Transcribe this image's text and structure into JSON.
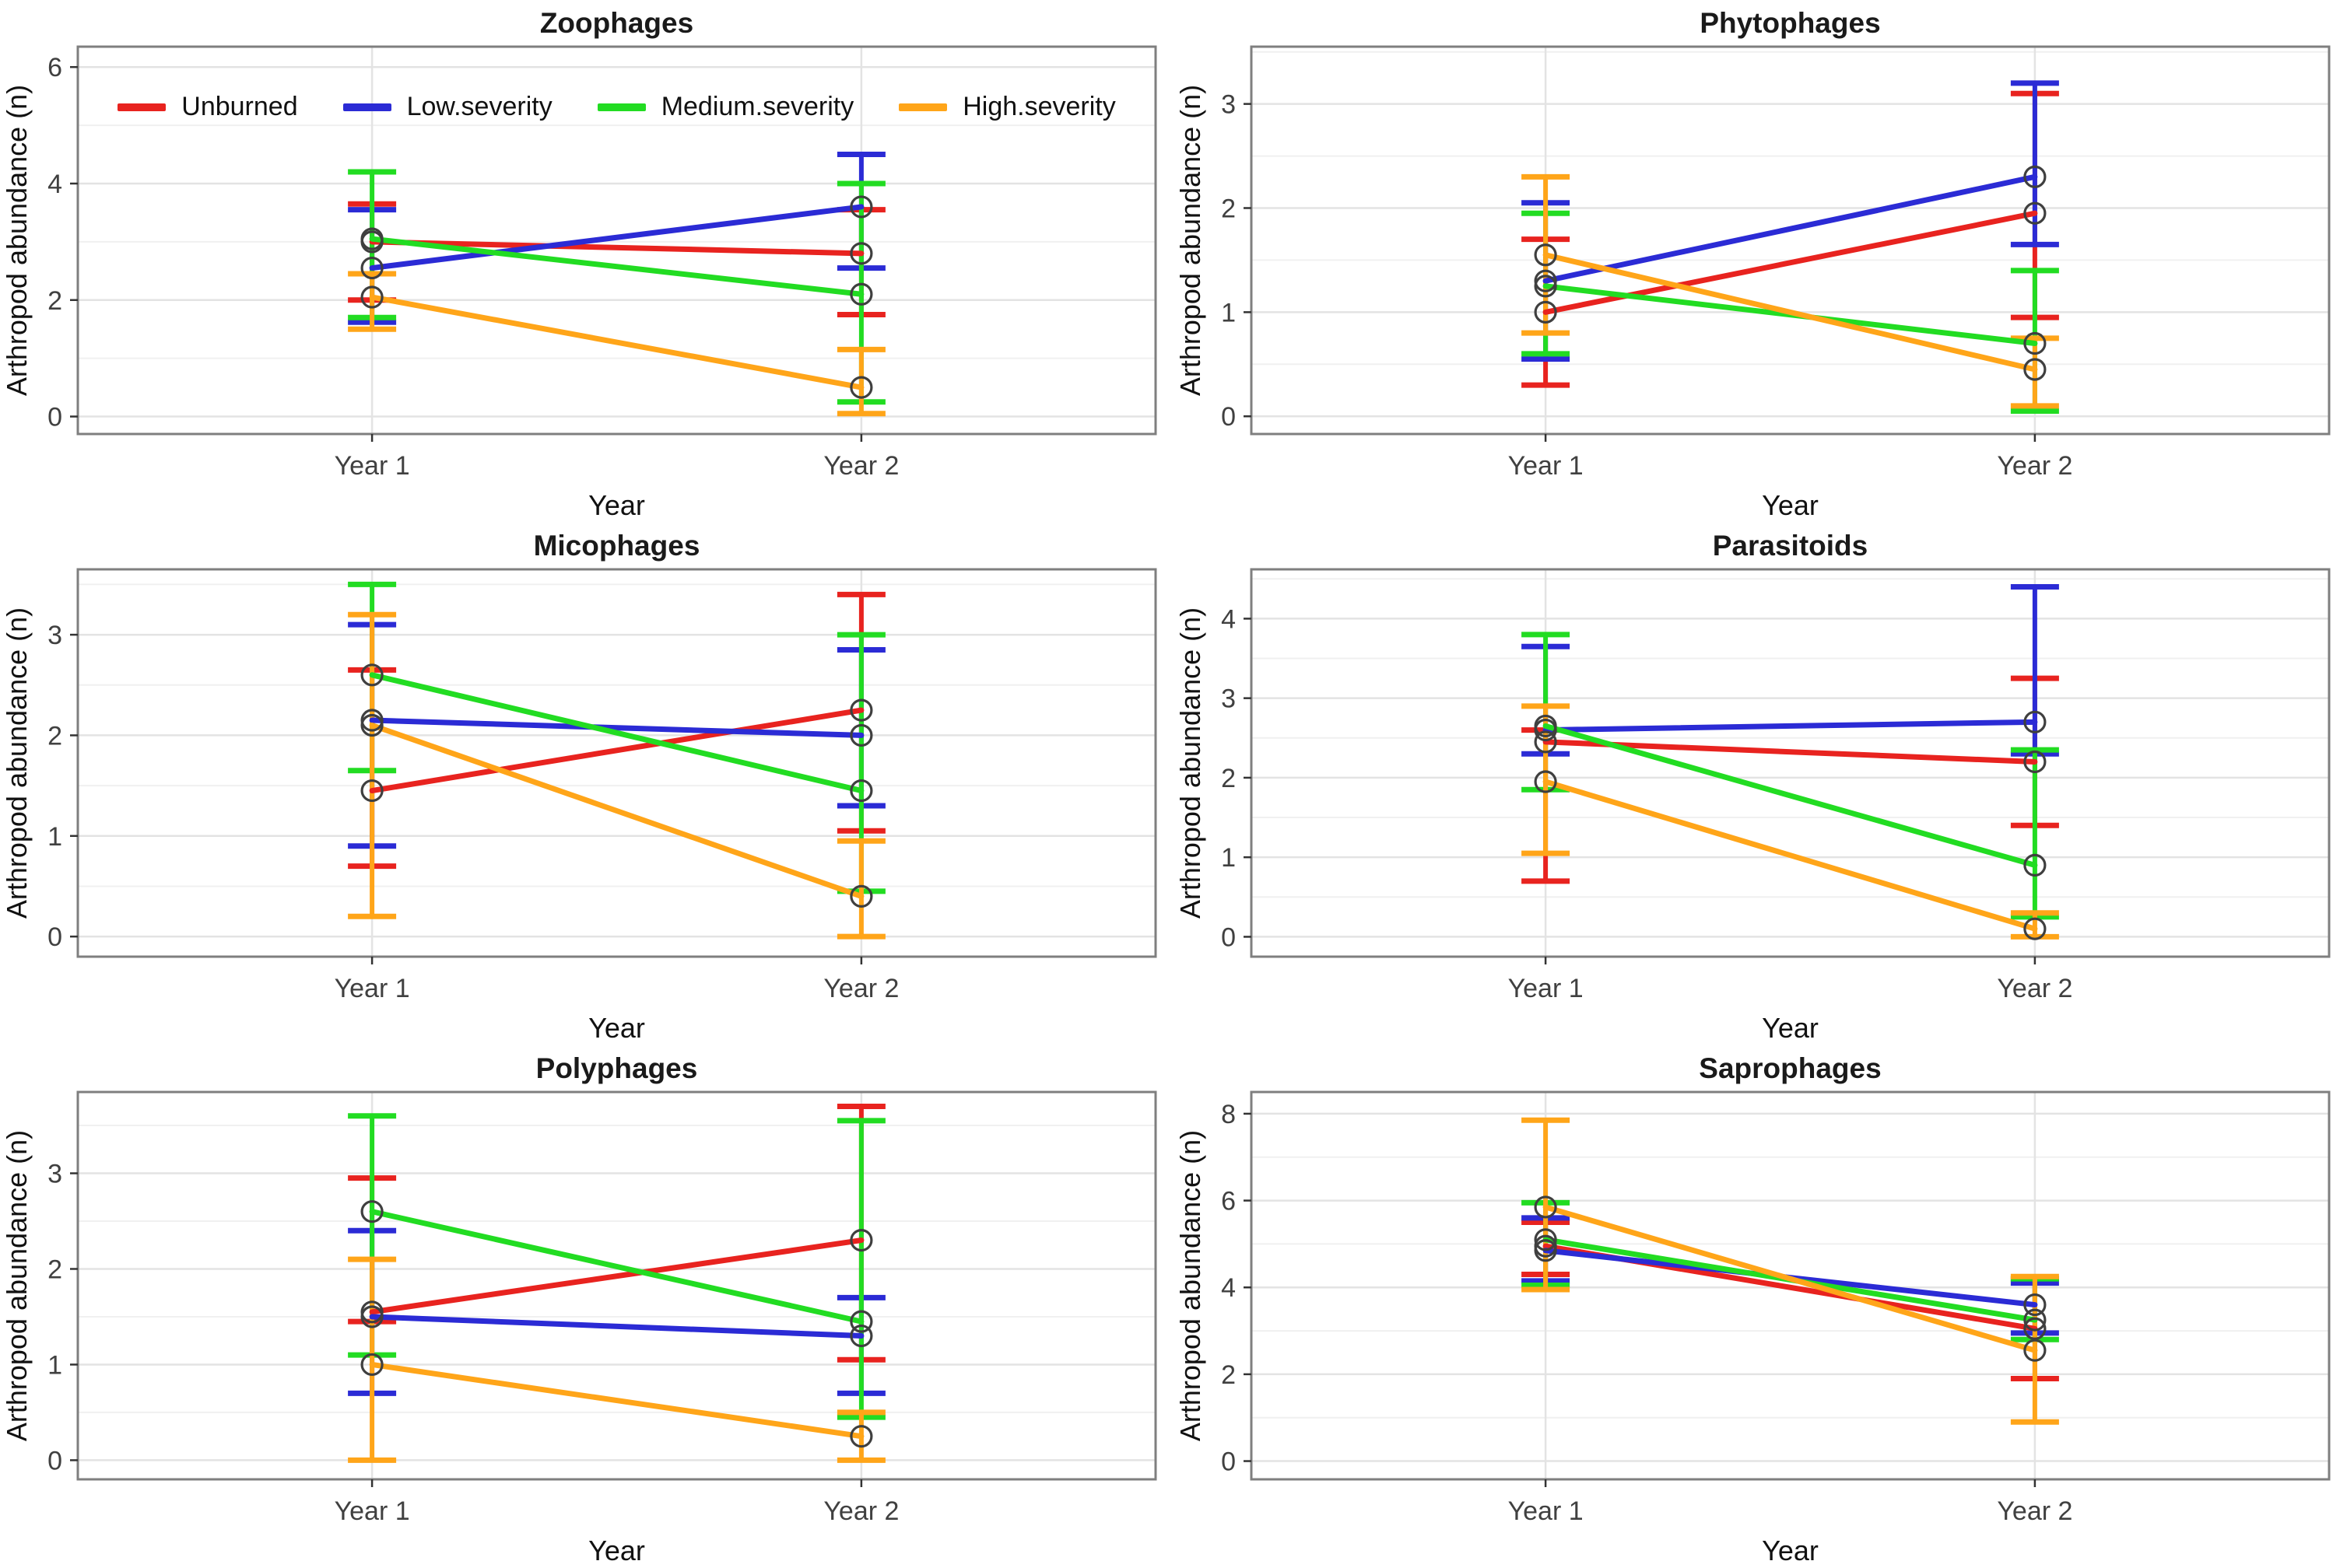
{
  "figure": {
    "ylabel": "Arthropod abundance (n)",
    "xlabel": "Year",
    "x_categories": [
      "Year 1",
      "Year 2"
    ]
  },
  "colors": {
    "unburned": "#e8231f",
    "low": "#2b2bd5",
    "medium": "#22dc22",
    "high": "#ffa519",
    "point_stroke": "#3f3f3f",
    "grid_major": "#e3e3e3",
    "grid_minor": "#f0f0f0",
    "panel_border": "#7f7f7f",
    "tick_text": "#404040",
    "title_text": "#1a1a1a"
  },
  "legend": {
    "items": [
      {
        "label": "Unburned",
        "color_key": "unburned"
      },
      {
        "label": "Low.severity",
        "color_key": "low"
      },
      {
        "label": "Medium.severity",
        "color_key": "medium"
      },
      {
        "label": "High.severity",
        "color_key": "high"
      }
    ]
  },
  "chart_data": [
    {
      "type": "line",
      "title": "Zoophages",
      "xlabel": "Year",
      "ylabel": "Arthropod abundance (n)",
      "x": [
        "Year 1",
        "Year 2"
      ],
      "ylim": [
        -0.3,
        6.35
      ],
      "yticks": [
        0,
        2,
        4,
        6
      ],
      "minor_ticks": [
        1,
        3,
        5
      ],
      "grid": true,
      "legend_position": "inside-top",
      "series": [
        {
          "name": "Unburned",
          "color_key": "unburned",
          "means": [
            3.0,
            2.8
          ],
          "ci_low": [
            2.0,
            1.75
          ],
          "ci_high": [
            3.65,
            3.55
          ]
        },
        {
          "name": "Low.severity",
          "color_key": "low",
          "means": [
            2.55,
            3.6
          ],
          "ci_low": [
            1.62,
            2.55
          ],
          "ci_high": [
            3.55,
            4.5
          ]
        },
        {
          "name": "Medium.severity",
          "color_key": "medium",
          "means": [
            3.05,
            2.1
          ],
          "ci_low": [
            1.7,
            0.25
          ],
          "ci_high": [
            4.2,
            4.0
          ]
        },
        {
          "name": "High.severity",
          "color_key": "high",
          "means": [
            2.05,
            0.5
          ],
          "ci_low": [
            1.5,
            0.05
          ],
          "ci_high": [
            2.45,
            1.15
          ]
        }
      ]
    },
    {
      "type": "line",
      "title": "Phytophages",
      "xlabel": "Year",
      "ylabel": "Arthropod abundance (n)",
      "x": [
        "Year 1",
        "Year 2"
      ],
      "ylim": [
        -0.17,
        3.55
      ],
      "yticks": [
        0,
        1,
        2,
        3
      ],
      "minor_ticks": [
        0.5,
        1.5,
        2.5,
        3.5
      ],
      "grid": true,
      "series": [
        {
          "name": "Unburned",
          "color_key": "unburned",
          "means": [
            1.0,
            1.95
          ],
          "ci_low": [
            0.3,
            0.95
          ],
          "ci_high": [
            1.7,
            3.1
          ]
        },
        {
          "name": "Low.severity",
          "color_key": "low",
          "means": [
            1.3,
            2.3
          ],
          "ci_low": [
            0.55,
            1.65
          ],
          "ci_high": [
            2.05,
            3.2
          ]
        },
        {
          "name": "Medium.severity",
          "color_key": "medium",
          "means": [
            1.25,
            0.7
          ],
          "ci_low": [
            0.6,
            0.05
          ],
          "ci_high": [
            1.95,
            1.4
          ]
        },
        {
          "name": "High.severity",
          "color_key": "high",
          "means": [
            1.55,
            0.45
          ],
          "ci_low": [
            0.8,
            0.1
          ],
          "ci_high": [
            2.3,
            0.75
          ]
        }
      ]
    },
    {
      "type": "line",
      "title": "Micophages",
      "xlabel": "Year",
      "ylabel": "Arthropod abundance (n)",
      "x": [
        "Year 1",
        "Year 2"
      ],
      "ylim": [
        -0.2,
        3.65
      ],
      "yticks": [
        0,
        1,
        2,
        3
      ],
      "minor_ticks": [
        0.5,
        1.5,
        2.5,
        3.5
      ],
      "grid": true,
      "series": [
        {
          "name": "Unburned",
          "color_key": "unburned",
          "means": [
            1.45,
            2.25
          ],
          "ci_low": [
            0.7,
            1.05
          ],
          "ci_high": [
            2.65,
            3.4
          ]
        },
        {
          "name": "Low.severity",
          "color_key": "low",
          "means": [
            2.15,
            2.0
          ],
          "ci_low": [
            0.9,
            1.3
          ],
          "ci_high": [
            3.1,
            2.85
          ]
        },
        {
          "name": "Medium.severity",
          "color_key": "medium",
          "means": [
            2.6,
            1.45
          ],
          "ci_low": [
            1.65,
            0.45
          ],
          "ci_high": [
            3.5,
            3.0
          ]
        },
        {
          "name": "High.severity",
          "color_key": "high",
          "means": [
            2.1,
            0.4
          ],
          "ci_low": [
            0.2,
            0.0
          ],
          "ci_high": [
            3.2,
            0.95
          ]
        }
      ]
    },
    {
      "type": "line",
      "title": "Parasitoids",
      "xlabel": "Year",
      "ylabel": "Arthropod abundance (n)",
      "x": [
        "Year 1",
        "Year 2"
      ],
      "ylim": [
        -0.25,
        4.62
      ],
      "yticks": [
        0,
        1,
        2,
        3,
        4
      ],
      "minor_ticks": [
        0.5,
        1.5,
        2.5,
        3.5,
        4.5
      ],
      "grid": true,
      "series": [
        {
          "name": "Unburned",
          "color_key": "unburned",
          "means": [
            2.45,
            2.2
          ],
          "ci_low": [
            0.7,
            1.4
          ],
          "ci_high": [
            2.6,
            3.25
          ]
        },
        {
          "name": "Low.severity",
          "color_key": "low",
          "means": [
            2.6,
            2.7
          ],
          "ci_low": [
            2.3,
            2.3
          ],
          "ci_high": [
            3.65,
            4.4
          ]
        },
        {
          "name": "Medium.severity",
          "color_key": "medium",
          "means": [
            2.65,
            0.9
          ],
          "ci_low": [
            1.85,
            0.25
          ],
          "ci_high": [
            3.8,
            2.35
          ]
        },
        {
          "name": "High.severity",
          "color_key": "high",
          "means": [
            1.95,
            0.1
          ],
          "ci_low": [
            1.05,
            0.0
          ],
          "ci_high": [
            2.9,
            0.3
          ]
        }
      ]
    },
    {
      "type": "line",
      "title": "Polyphages",
      "xlabel": "Year",
      "ylabel": "Arthropod abundance (n)",
      "x": [
        "Year 1",
        "Year 2"
      ],
      "ylim": [
        -0.2,
        3.85
      ],
      "yticks": [
        0,
        1,
        2,
        3
      ],
      "minor_ticks": [
        0.5,
        1.5,
        2.5,
        3.5
      ],
      "grid": true,
      "series": [
        {
          "name": "Unburned",
          "color_key": "unburned",
          "means": [
            1.55,
            2.3
          ],
          "ci_low": [
            1.45,
            1.05
          ],
          "ci_high": [
            2.95,
            3.7
          ]
        },
        {
          "name": "Low.severity",
          "color_key": "low",
          "means": [
            1.5,
            1.3
          ],
          "ci_low": [
            0.7,
            0.7
          ],
          "ci_high": [
            2.4,
            1.7
          ]
        },
        {
          "name": "Medium.severity",
          "color_key": "medium",
          "means": [
            2.6,
            1.45
          ],
          "ci_low": [
            1.1,
            0.45
          ],
          "ci_high": [
            3.6,
            3.55
          ]
        },
        {
          "name": "High.severity",
          "color_key": "high",
          "means": [
            1.0,
            0.25
          ],
          "ci_low": [
            0.0,
            0.0
          ],
          "ci_high": [
            2.1,
            0.5
          ]
        }
      ]
    },
    {
      "type": "line",
      "title": "Saprophages",
      "xlabel": "Year",
      "ylabel": "Arthropod abundance (n)",
      "x": [
        "Year 1",
        "Year 2"
      ],
      "ylim": [
        -0.42,
        8.5
      ],
      "yticks": [
        0,
        2,
        4,
        6,
        8
      ],
      "minor_ticks": [
        1,
        3,
        5,
        7
      ],
      "grid": true,
      "series": [
        {
          "name": "Unburned",
          "color_key": "unburned",
          "means": [
            4.95,
            3.05
          ],
          "ci_low": [
            4.3,
            1.9
          ],
          "ci_high": [
            5.5,
            4.2
          ]
        },
        {
          "name": "Low.severity",
          "color_key": "low",
          "means": [
            4.85,
            3.6
          ],
          "ci_low": [
            4.15,
            2.95
          ],
          "ci_high": [
            5.6,
            4.1
          ]
        },
        {
          "name": "Medium.severity",
          "color_key": "medium",
          "means": [
            5.1,
            3.25
          ],
          "ci_low": [
            4.05,
            2.8
          ],
          "ci_high": [
            5.95,
            4.2
          ]
        },
        {
          "name": "High.severity",
          "color_key": "high",
          "means": [
            5.85,
            2.55
          ],
          "ci_low": [
            3.95,
            0.9
          ],
          "ci_high": [
            7.85,
            4.25
          ]
        }
      ]
    }
  ]
}
